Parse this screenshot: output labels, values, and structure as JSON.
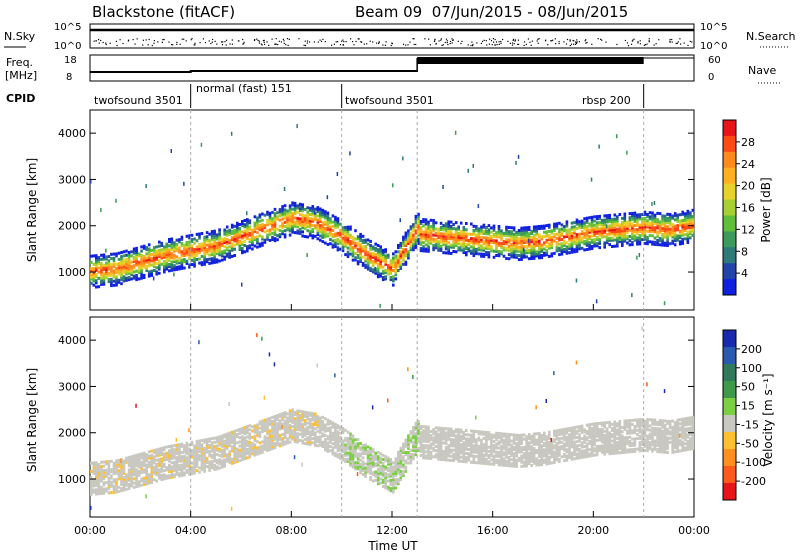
{
  "header": {
    "title": "Blackstone (fitACF)",
    "beam_info": "Beam 09  07/Jun/2015 - 08/Jun/2015"
  },
  "left_labels": {
    "nsky": "N.Sky",
    "freq_line1": "Freq.",
    "freq_line2": "[MHz]",
    "cpid": "CPID"
  },
  "right_labels": {
    "nsearch": "N.Search",
    "nave": "Nave"
  },
  "small_axes": {
    "nsky_ticks": [
      "10^5",
      "10^0"
    ],
    "nsearch_ticks": [
      "10^5",
      "10^0"
    ],
    "freq_ticks": [
      "18",
      "8"
    ],
    "nave_ticks": [
      "60",
      "0"
    ]
  },
  "cpid_segments": [
    {
      "label": "twofsound 3501",
      "start_hour": 0,
      "end_hour": 4
    },
    {
      "label": "normal (fast) 151",
      "start_hour": 4,
      "end_hour": 10
    },
    {
      "label": "twofsound 3501",
      "start_hour": 10,
      "end_hour": 22
    },
    {
      "label": "rbsp 200",
      "start_hour": 22,
      "end_hour": 24
    }
  ],
  "power_colorbar": {
    "label": "Power [dB]",
    "ticks": [
      "28",
      "24",
      "20",
      "16",
      "12",
      "8",
      "4"
    ],
    "colors": [
      "#e8141a",
      "#ff4a14",
      "#ff8a1c",
      "#ffb020",
      "#e8d22a",
      "#a8d030",
      "#5fbf3a",
      "#3c9a5a",
      "#2e7a7a",
      "#2244aa",
      "#1020e0"
    ]
  },
  "velocity_colorbar": {
    "label": "Velocity [m s⁻¹]",
    "ticks": [
      "200",
      "100",
      "50",
      "15",
      "-15",
      "-50",
      "-100",
      "-200"
    ],
    "colors": [
      "#1a2ab0",
      "#2a5ab0",
      "#2e7a5a",
      "#3c9a4a",
      "#7ad040",
      "#c8c8c0",
      "#ffc030",
      "#ff9020",
      "#ff5a1c",
      "#e8141a"
    ]
  },
  "chart_data": [
    {
      "type": "heatmap",
      "panel": "power",
      "ylabel": "Slant Range [km]",
      "y_ticks": [
        1000,
        2000,
        3000,
        4000
      ],
      "ylim": [
        180,
        4500
      ],
      "xlim": [
        0,
        24
      ],
      "series": [
        {
          "x": [
            0,
            1,
            2,
            3,
            4,
            5,
            6,
            7,
            8,
            9,
            10,
            11,
            12,
            13
          ],
          "y": [
            1050,
            1100,
            1250,
            1400,
            1500,
            1600,
            1800,
            2000,
            2200,
            2100,
            1800,
            1400,
            1100,
            2000
          ]
        },
        {
          "x": [
            13,
            14,
            15,
            16,
            17,
            18,
            19,
            20,
            21,
            22,
            23,
            24
          ],
          "y": [
            1850,
            1800,
            1750,
            1700,
            1650,
            1700,
            1800,
            1900,
            1950,
            2000,
            1950,
            2050
          ]
        }
      ]
    },
    {
      "type": "heatmap",
      "panel": "velocity",
      "ylabel": "Slant Range [km]",
      "xlabel": "Time UT",
      "y_ticks": [
        1000,
        2000,
        3000,
        4000
      ],
      "ylim": [
        180,
        4500
      ],
      "xlim": [
        0,
        24
      ],
      "x_tick_labels": [
        "00:00",
        "04:00",
        "08:00",
        "12:00",
        "16:00",
        "20:00",
        "00:00"
      ]
    }
  ]
}
